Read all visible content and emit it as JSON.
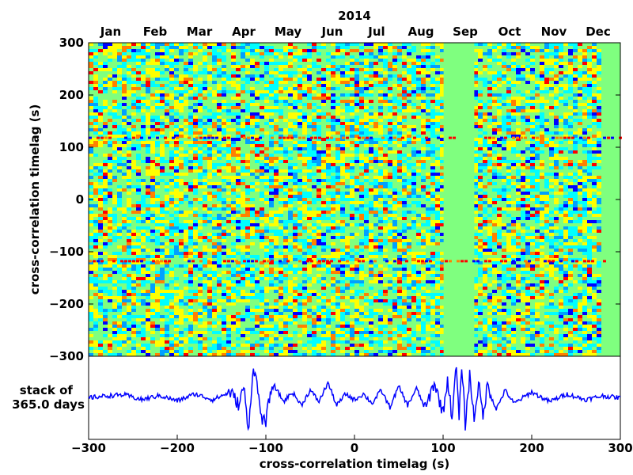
{
  "chart_data": [
    {
      "type": "heatmap",
      "title": "2014",
      "xlabel": "",
      "ylabel": "cross-correlation timelag (s)",
      "x_tick_labels": [
        "Jan",
        "Feb",
        "Mar",
        "Apr",
        "May",
        "Jun",
        "Jul",
        "Aug",
        "Sep",
        "Oct",
        "Nov",
        "Dec"
      ],
      "x_axis": "date",
      "x_range": [
        "2014-01-01",
        "2014-12-31"
      ],
      "ylim": [
        -300,
        300
      ],
      "y_ticks": [
        -300,
        -200,
        -100,
        0,
        100,
        200,
        300
      ],
      "y_tick_labels": [
        "−300",
        "−200",
        "−100",
        "0",
        "100",
        "200",
        "300"
      ],
      "colormap": [
        "#000080",
        "#0000ff",
        "#00a0ff",
        "#00ffff",
        "#7fff7f",
        "#ffff00",
        "#ff8000",
        "#ff0000",
        "#800000"
      ],
      "fill_color": "#7fff7f",
      "data_gaps": [
        {
          "start": "2014-09-01",
          "end": "2014-09-22"
        },
        {
          "start": "2014-12-18",
          "end": "2014-12-31"
        }
      ],
      "coherent_bands_timelag_s": [
        118,
        -118
      ]
    },
    {
      "type": "line",
      "ylabel": "stack of\n365.0 days",
      "xlabel": "cross-correlation timelag (s)",
      "xlim": [
        -300,
        300
      ],
      "x_ticks": [
        -300,
        -200,
        -100,
        0,
        100,
        200,
        300
      ],
      "x_tick_labels": [
        "−300",
        "−200",
        "−100",
        "0",
        "100",
        "200",
        "300"
      ],
      "y_ticks_shown": false,
      "series": [
        {
          "color": "#0000ff",
          "x": [
            -300,
            -280,
            -260,
            -240,
            -220,
            -200,
            -180,
            -160,
            -140,
            -130,
            -125,
            -120,
            -115,
            -112,
            -110,
            -105,
            -100,
            -95,
            -90,
            -80,
            -70,
            -60,
            -50,
            -40,
            -30,
            -20,
            -10,
            0,
            10,
            20,
            30,
            40,
            50,
            60,
            70,
            80,
            90,
            100,
            105,
            110,
            115,
            118,
            121,
            125,
            130,
            135,
            140,
            145,
            150,
            160,
            170,
            180,
            200,
            220,
            240,
            260,
            280,
            300
          ],
          "y": [
            0.0,
            0.05,
            0.08,
            -0.05,
            0.06,
            -0.08,
            0.1,
            -0.05,
            0.15,
            -0.2,
            0.35,
            -0.9,
            0.6,
            0.8,
            0.3,
            -0.5,
            -0.7,
            0.2,
            0.3,
            -0.1,
            0.15,
            -0.2,
            0.2,
            -0.1,
            0.4,
            -0.2,
            0.1,
            -0.05,
            0.1,
            -0.15,
            0.2,
            -0.25,
            0.3,
            -0.2,
            0.25,
            -0.3,
            0.4,
            -0.4,
            0.5,
            -0.5,
            0.85,
            -0.6,
            0.9,
            -0.7,
            0.6,
            -0.55,
            0.4,
            -0.5,
            0.35,
            -0.3,
            0.2,
            -0.15,
            0.15,
            -0.1,
            0.1,
            -0.05,
            0.05,
            0.0
          ]
        }
      ]
    }
  ]
}
